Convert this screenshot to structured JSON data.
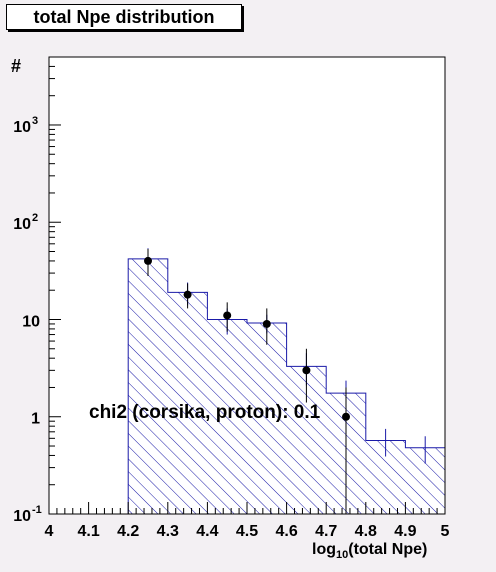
{
  "title": "total Npe distribution",
  "colors": {
    "background": "#f3f0f3",
    "plot_area": "#ffffff",
    "histogram": "#1a1aa8",
    "data_points": "#000000"
  },
  "chart_data": {
    "type": "histogram",
    "title": "total Npe distribution",
    "xlabel": "log10(total Npe)",
    "ylabel": "#",
    "xlim": [
      4.0,
      5.0
    ],
    "ylim": [
      0.1,
      5000
    ],
    "y_scale": "log",
    "x_ticks": [
      "4",
      "4.1",
      "4.2",
      "4.3",
      "4.4",
      "4.5",
      "4.6",
      "4.7",
      "4.8",
      "4.9",
      "5"
    ],
    "y_ticks": [
      {
        "value": 0.1,
        "base": "10",
        "exp": "-1"
      },
      {
        "value": 1,
        "base": "1",
        "exp": ""
      },
      {
        "value": 10,
        "base": "10",
        "exp": ""
      },
      {
        "value": 100,
        "base": "10",
        "exp": "2"
      },
      {
        "value": 1000,
        "base": "10",
        "exp": "3"
      }
    ],
    "series": [
      {
        "kind": "simulation-histogram",
        "style": "hatched",
        "bins": [
          {
            "x0": 4.2,
            "x1": 4.3,
            "y": 42,
            "err": 12
          },
          {
            "x0": 4.3,
            "x1": 4.4,
            "y": 19,
            "err": 5
          },
          {
            "x0": 4.4,
            "x1": 4.5,
            "y": 10,
            "err": 3
          },
          {
            "x0": 4.5,
            "x1": 4.6,
            "y": 9.2,
            "err": 2
          },
          {
            "x0": 4.6,
            "x1": 4.7,
            "y": 3.3,
            "err": 1.2
          },
          {
            "x0": 4.7,
            "x1": 4.8,
            "y": 1.75,
            "err": 0.6
          },
          {
            "x0": 4.8,
            "x1": 4.9,
            "y": 0.57,
            "err": 0.18
          },
          {
            "x0": 4.9,
            "x1": 5.0,
            "y": 0.48,
            "err": 0.15
          }
        ]
      },
      {
        "kind": "data-points",
        "points": [
          {
            "x": 4.25,
            "y": 40,
            "err_lo": 12,
            "err_hi": 13
          },
          {
            "x": 4.35,
            "y": 18,
            "err_lo": 5,
            "err_hi": 5.5
          },
          {
            "x": 4.45,
            "y": 11,
            "err_lo": 3.5,
            "err_hi": 4
          },
          {
            "x": 4.55,
            "y": 9,
            "err_lo": 3.5,
            "err_hi": 4
          },
          {
            "x": 4.65,
            "y": 3,
            "err_lo": 1.6,
            "err_hi": 2
          },
          {
            "x": 4.75,
            "y": 1,
            "err_lo": 0.9,
            "err_hi": 1
          }
        ]
      }
    ],
    "annotations": [
      "chi2 (corsika, proton): 0.1"
    ]
  }
}
